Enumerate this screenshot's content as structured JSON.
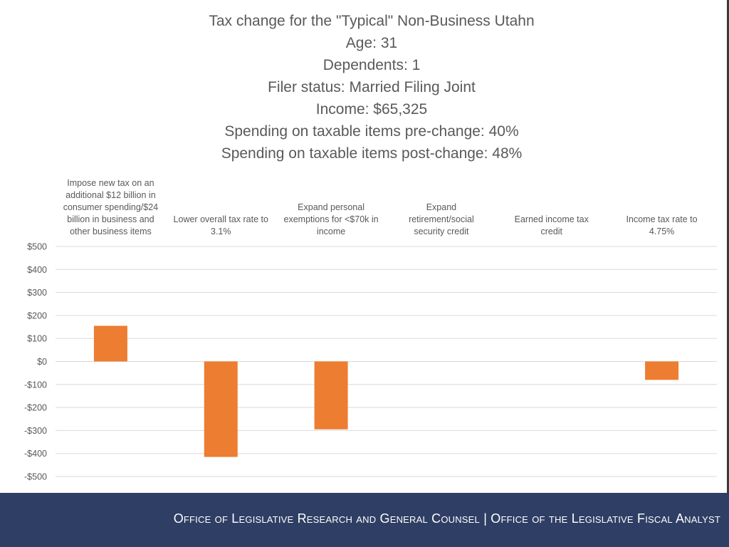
{
  "colors": {
    "bar": "#ed7d31",
    "gridline": "#d9d9d9",
    "text": "#595959",
    "footer_bg": "#2f3e64",
    "footer_text": "#ffffff"
  },
  "chart_data": {
    "type": "bar",
    "title": "Tax change for the \"Typical\" Non-Business Utahn",
    "subtitle_lines": [
      "Age: 31",
      "Dependents: 1",
      "Filer status: Married Filing Joint",
      "Income: $65,325",
      "Spending on taxable items pre-change: 40%",
      "Spending on taxable items post-change: 48%"
    ],
    "categories": [
      [
        "Impose new tax on an",
        "additional $12 billion in",
        "consumer spending/$24",
        "billion in business and",
        "other business items"
      ],
      [
        "Lower overall tax rate to",
        "3.1%"
      ],
      [
        "Expand personal",
        "exemptions for <$70k in",
        "income"
      ],
      [
        "Expand",
        "retirement/social",
        "security credit"
      ],
      [
        "Earned income tax",
        "credit"
      ],
      [
        "Income tax rate to",
        "4.75%"
      ]
    ],
    "values": [
      155,
      -415,
      -295,
      0,
      0,
      -80
    ],
    "xlabel": "",
    "ylabel": "",
    "ylim": [
      -500,
      500
    ],
    "yticks": [
      500,
      400,
      300,
      200,
      100,
      0,
      -100,
      -200,
      -300,
      -400,
      -500
    ],
    "ytick_labels": [
      "$500",
      "$400",
      "$300",
      "$200",
      "$100",
      "$0",
      "-$100",
      "-$200",
      "-$300",
      "-$400",
      "-$500"
    ],
    "category_label_position": "top",
    "grid": true,
    "legend": "none"
  },
  "footer": {
    "left": "Office of Legislative Research and General Counsel",
    "separator": "|",
    "right": "Office of the Legislative Fiscal Analyst"
  }
}
